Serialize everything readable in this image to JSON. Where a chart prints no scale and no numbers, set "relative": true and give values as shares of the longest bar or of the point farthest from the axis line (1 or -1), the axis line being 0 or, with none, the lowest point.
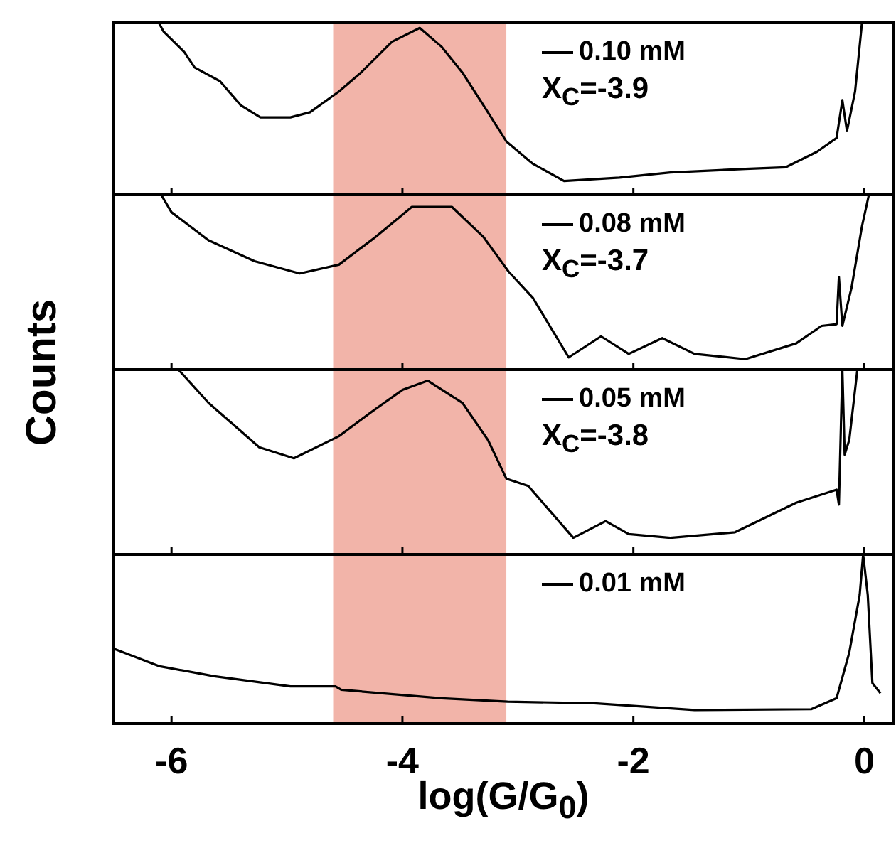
{
  "chart_data": [
    {
      "type": "line",
      "ylabel": "Counts",
      "relative": true,
      "xlim": [
        -6.5,
        0.25
      ],
      "xticks": [
        -6,
        -4,
        -2,
        0
      ],
      "tick_labels": false,
      "legend": "top right",
      "annotations": [
        "X$_{C}$=-3.9"
      ],
      "bands": [
        {
          "axis": "x",
          "from": -4.6,
          "to": -3.1,
          "color": "#f2b4a9"
        }
      ],
      "x": [
        -6.11,
        -6.07,
        -5.89,
        -5.8,
        -5.58,
        -5.4,
        -5.23,
        -4.97,
        -4.8,
        -4.55,
        -4.36,
        -4.09,
        -3.85,
        -3.66,
        -3.48,
        -3.26,
        -3.1,
        -2.87,
        -2.6,
        -2.12,
        -1.68,
        -1.03,
        -0.68,
        -0.41,
        -0.24,
        -0.19,
        -0.15,
        -0.08,
        -0.02
      ],
      "series": [
        {
          "name": "0.10 mM",
          "color": "#000000",
          "values": [
            1.0,
            0.95,
            0.83,
            0.74,
            0.66,
            0.52,
            0.45,
            0.45,
            0.48,
            0.6,
            0.71,
            0.89,
            0.97,
            0.86,
            0.71,
            0.48,
            0.31,
            0.18,
            0.08,
            0.1,
            0.13,
            0.15,
            0.16,
            0.25,
            0.33,
            0.55,
            0.37,
            0.6,
            1.0
          ]
        }
      ]
    },
    {
      "type": "line",
      "relative": true,
      "xlim": [
        -6.5,
        0.25
      ],
      "xticks": [
        -6,
        -4,
        -2,
        0
      ],
      "tick_labels": false,
      "legend": "top right",
      "annotations": [
        "X$_{C}$=-3.7"
      ],
      "bands": [
        {
          "axis": "x",
          "from": -4.6,
          "to": -3.1,
          "color": "#f2b4a9"
        }
      ],
      "x": [
        -6.09,
        -6.0,
        -5.68,
        -5.28,
        -4.89,
        -4.55,
        -4.23,
        -3.92,
        -3.57,
        -3.3,
        -3.08,
        -2.87,
        -2.56,
        -2.28,
        -2.04,
        -1.75,
        -1.47,
        -1.03,
        -0.59,
        -0.37,
        -0.24,
        -0.22,
        -0.19,
        -0.11,
        -0.02,
        0.04
      ],
      "series": [
        {
          "name": "0.08 mM",
          "color": "#000000",
          "values": [
            1.0,
            0.9,
            0.74,
            0.62,
            0.55,
            0.6,
            0.76,
            0.93,
            0.93,
            0.76,
            0.56,
            0.41,
            0.07,
            0.19,
            0.09,
            0.18,
            0.09,
            0.06,
            0.15,
            0.25,
            0.26,
            0.53,
            0.25,
            0.47,
            0.82,
            1.0
          ]
        }
      ]
    },
    {
      "type": "line",
      "relative": true,
      "xlim": [
        -6.5,
        0.25
      ],
      "xticks": [
        -6,
        -4,
        -2,
        0
      ],
      "tick_labels": false,
      "legend": "top right",
      "annotations": [
        "X$_{C}$=-3.8"
      ],
      "bands": [
        {
          "axis": "x",
          "from": -4.6,
          "to": -3.1,
          "color": "#f2b4a9"
        }
      ],
      "x": [
        -5.94,
        -5.68,
        -5.24,
        -4.94,
        -4.55,
        -4.27,
        -4.0,
        -3.78,
        -3.48,
        -3.26,
        -3.1,
        -2.91,
        -2.52,
        -2.24,
        -2.04,
        -1.68,
        -1.12,
        -0.59,
        -0.24,
        -0.22,
        -0.19,
        -0.17,
        -0.13,
        -0.06
      ],
      "series": [
        {
          "name": "0.05 mM",
          "color": "#000000",
          "values": [
            1.0,
            0.82,
            0.58,
            0.52,
            0.64,
            0.77,
            0.89,
            0.94,
            0.82,
            0.62,
            0.41,
            0.37,
            0.09,
            0.18,
            0.11,
            0.09,
            0.12,
            0.28,
            0.35,
            0.27,
            1.0,
            0.54,
            0.62,
            1.0
          ]
        }
      ]
    },
    {
      "type": "line",
      "xlabel": "log(G/G$_{0}$)",
      "relative": true,
      "xlim": [
        -6.5,
        0.25
      ],
      "xticks": [
        -6,
        -4,
        -2,
        0
      ],
      "tick_labels": "x",
      "legend": "top right",
      "bands": [
        {
          "axis": "x",
          "from": -4.6,
          "to": -3.1,
          "color": "#f2b4a9"
        }
      ],
      "x": [
        -6.49,
        -6.11,
        -5.63,
        -4.97,
        -4.58,
        -4.53,
        -3.66,
        -3.09,
        -2.34,
        -1.47,
        -0.46,
        -0.24,
        -0.13,
        -0.04,
        -0.01,
        0.03,
        0.07,
        0.14
      ],
      "series": [
        {
          "name": "0.01 mM",
          "color": "#000000",
          "values": [
            0.44,
            0.34,
            0.28,
            0.22,
            0.22,
            0.2,
            0.15,
            0.13,
            0.12,
            0.08,
            0.085,
            0.15,
            0.42,
            0.76,
            1.0,
            0.76,
            0.24,
            0.18
          ]
        }
      ]
    }
  ]
}
